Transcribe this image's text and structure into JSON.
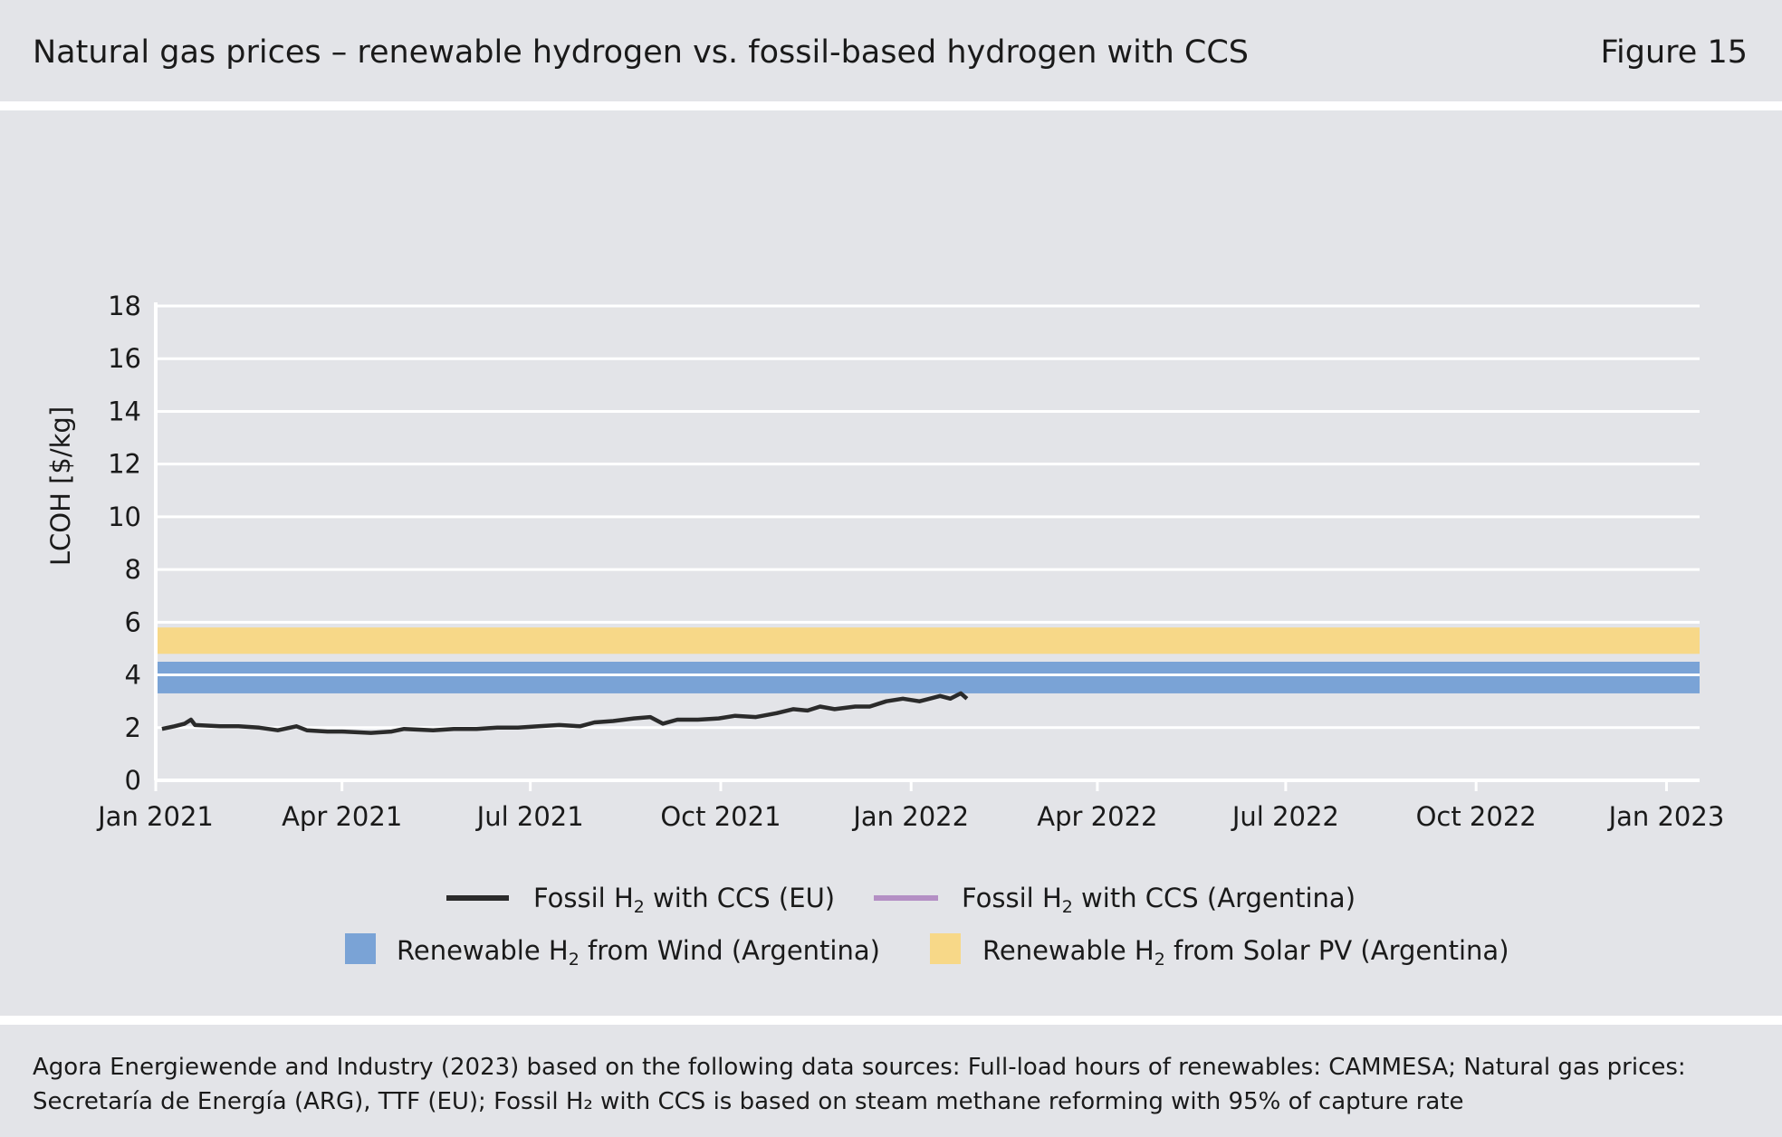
{
  "header": {
    "title": "Natural gas prices – renewable hydrogen vs. fossil-based hydrogen with CCS",
    "figure": "Figure 15"
  },
  "footer": {
    "source_line1": "Agora Energiewende and Industry (2023) based on the following data sources: Full-load hours of renewables: CAMMESA; Natural gas prices:",
    "source_line2": "Secretaría de Energía (ARG), TTF (EU); Fossil H₂ with CCS is based on steam methane reforming with 95% of capture rate"
  },
  "chart_data": {
    "type": "line",
    "ylabel": "LCOH [$/kg]",
    "xlabel": "",
    "ylim": [
      0,
      18
    ],
    "yticks": [
      0,
      2,
      4,
      6,
      8,
      10,
      12,
      14,
      16,
      18
    ],
    "xticks": [
      {
        "label": "Jan 2021",
        "date": "2021-01-01"
      },
      {
        "label": "Apr 2021",
        "date": "2021-04-01"
      },
      {
        "label": "Jul 2021",
        "date": "2021-07-01"
      },
      {
        "label": "Oct 2021",
        "date": "2021-10-01"
      },
      {
        "label": "Jan 2022",
        "date": "2022-01-01"
      },
      {
        "label": "Apr 2022",
        "date": "2022-04-01"
      },
      {
        "label": "Jul 2022",
        "date": "2022-07-01"
      },
      {
        "label": "Oct 2022",
        "date": "2022-10-01"
      },
      {
        "label": "Jan 2023",
        "date": "2023-01-01"
      }
    ],
    "xlim": [
      "2021-01-01",
      "2023-01-17"
    ],
    "grid": true,
    "legend_placement": "bottom",
    "bands": [
      {
        "name": "Renewable H₂ from Wind (Argentina)",
        "legend_prefix": "Renewable H",
        "legend_sub": "2",
        "legend_suffix": " from Wind (Argentina)",
        "ymin": 3.3,
        "ymax": 4.5,
        "color": "#7aa3d6"
      },
      {
        "name": "Renewable H₂ from Solar PV (Argentina)",
        "legend_prefix": "Renewable H",
        "legend_sub": "2",
        "legend_suffix": " from Solar PV (Argentina)",
        "ymin": 4.8,
        "ymax": 5.8,
        "color": "#f7d888"
      }
    ],
    "series": [
      {
        "name": "Fossil H₂ with CCS (EU)",
        "legend_prefix": "Fossil H",
        "legend_sub": "2",
        "legend_suffix": " with CCS (EU)",
        "color": "#2b2b2b",
        "points": [
          [
            "2021-01-04",
            1.95
          ],
          [
            "2021-01-10",
            2.05
          ],
          [
            "2021-01-15",
            2.15
          ],
          [
            "2021-01-18",
            2.3
          ],
          [
            "2021-01-20",
            2.1
          ],
          [
            "2021-02-01",
            2.05
          ],
          [
            "2021-02-10",
            2.05
          ],
          [
            "2021-02-20",
            2.0
          ],
          [
            "2021-03-01",
            1.9
          ],
          [
            "2021-03-10",
            2.05
          ],
          [
            "2021-03-15",
            1.9
          ],
          [
            "2021-03-25",
            1.85
          ],
          [
            "2021-04-01",
            1.85
          ],
          [
            "2021-04-15",
            1.8
          ],
          [
            "2021-04-25",
            1.85
          ],
          [
            "2021-05-01",
            1.95
          ],
          [
            "2021-05-15",
            1.9
          ],
          [
            "2021-05-25",
            1.95
          ],
          [
            "2021-06-05",
            1.95
          ],
          [
            "2021-06-15",
            2.0
          ],
          [
            "2021-06-25",
            2.0
          ],
          [
            "2021-07-05",
            2.05
          ],
          [
            "2021-07-15",
            2.1
          ],
          [
            "2021-07-25",
            2.05
          ],
          [
            "2021-08-01",
            2.2
          ],
          [
            "2021-08-10",
            2.25
          ],
          [
            "2021-08-20",
            2.35
          ],
          [
            "2021-08-28",
            2.4
          ],
          [
            "2021-09-03",
            2.15
          ],
          [
            "2021-09-10",
            2.3
          ],
          [
            "2021-09-20",
            2.3
          ],
          [
            "2021-09-30",
            2.35
          ],
          [
            "2021-10-08",
            2.45
          ],
          [
            "2021-10-18",
            2.4
          ],
          [
            "2021-10-28",
            2.55
          ],
          [
            "2021-11-05",
            2.7
          ],
          [
            "2021-11-12",
            2.65
          ],
          [
            "2021-11-18",
            2.8
          ],
          [
            "2021-11-25",
            2.7
          ],
          [
            "2021-12-05",
            2.8
          ],
          [
            "2021-12-12",
            2.8
          ],
          [
            "2021-12-20",
            3.0
          ],
          [
            "2021-12-28",
            3.1
          ],
          [
            "2022-01-05",
            3.0
          ],
          [
            "2022-01-10",
            3.1
          ],
          [
            "2022-01-15",
            3.2
          ],
          [
            "2022-01-20",
            3.1
          ],
          [
            "2022-01-25",
            3.3
          ],
          [
            "2022-01-28",
            3.1
          ]
        ]
      },
      {
        "name": "Fossil H₂ with CCS (Argentina)",
        "legend_prefix": "Fossil H",
        "legend_sub": "2",
        "legend_suffix": " with CCS (Argentina)",
        "color": "#b48fc4",
        "points": []
      }
    ]
  }
}
